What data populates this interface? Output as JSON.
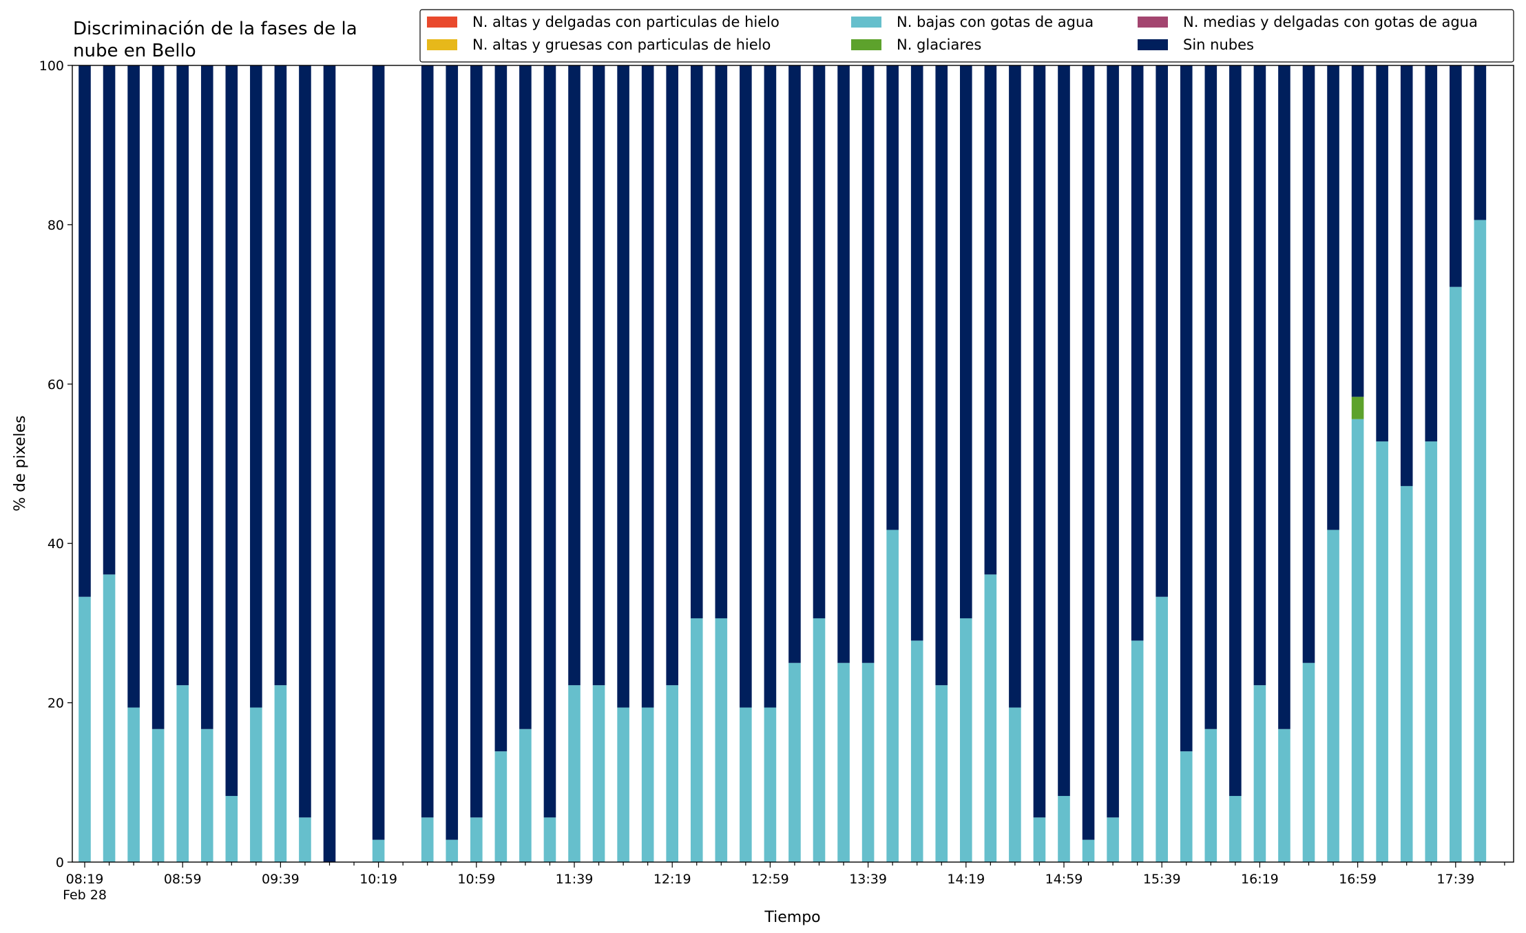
{
  "chart_data": {
    "type": "bar",
    "stacked": true,
    "title_line1": "Discriminación de la fases de la",
    "title_line2": "nube en Bello",
    "xlabel": "Tiempo",
    "ylabel": "% de pixeles",
    "ylim": [
      0,
      100
    ],
    "yticks": [
      "0",
      "20",
      "40",
      "60",
      "80",
      "100"
    ],
    "date_label": "Feb 28",
    "x_tick_labels": [
      "08:19",
      "08:59",
      "09:39",
      "10:19",
      "10:59",
      "11:39",
      "12:19",
      "12:59",
      "13:39",
      "14:19",
      "14:59",
      "15:39",
      "16:19",
      "16:59",
      "17:39"
    ],
    "x_start": "08:19",
    "x_interval_minutes": 10,
    "legend_position": "top-right",
    "x": [
      "08:19",
      "08:29",
      "08:39",
      "08:49",
      "08:59",
      "09:09",
      "09:19",
      "09:29",
      "09:39",
      "09:49",
      "09:59",
      "10:09",
      "10:19",
      "10:29",
      "10:39",
      "10:49",
      "10:59",
      "11:09",
      "11:19",
      "11:29",
      "11:39",
      "11:49",
      "11:59",
      "12:09",
      "12:19",
      "12:29",
      "12:39",
      "12:49",
      "12:59",
      "13:09",
      "13:19",
      "13:29",
      "13:39",
      "13:49",
      "13:59",
      "14:09",
      "14:19",
      "14:29",
      "14:39",
      "14:49",
      "14:59",
      "15:09",
      "15:19",
      "15:29",
      "15:39",
      "15:49",
      "15:59",
      "16:09",
      "16:19",
      "16:29",
      "16:39",
      "16:49",
      "16:59",
      "17:09",
      "17:19",
      "17:29",
      "17:39",
      "17:49",
      "17:59"
    ],
    "series": [
      {
        "name": "N. altas y delgadas con particulas de hielo",
        "color": "#e9492d",
        "values": [
          0,
          0,
          0,
          0,
          0,
          0,
          0,
          0,
          0,
          0,
          0,
          null,
          0,
          null,
          0,
          0,
          0,
          0,
          0,
          0,
          0,
          0,
          0,
          0,
          0,
          0,
          0,
          0,
          0,
          0,
          0,
          0,
          0,
          0,
          0,
          0,
          0,
          0,
          0,
          0,
          0,
          0,
          0,
          0,
          0,
          0,
          0,
          0,
          0,
          0,
          0,
          0,
          0,
          0,
          0,
          0,
          0,
          0,
          0
        ]
      },
      {
        "name": "N. altas y gruesas con particulas de hielo",
        "color": "#e7b81a",
        "values": [
          0,
          0,
          0,
          0,
          0,
          0,
          0,
          0,
          0,
          0,
          0,
          null,
          0,
          null,
          0,
          0,
          0,
          0,
          0,
          0,
          0,
          0,
          0,
          0,
          0,
          0,
          0,
          0,
          0,
          0,
          0,
          0,
          0,
          0,
          0,
          0,
          0,
          0,
          0,
          0,
          0,
          0,
          0,
          0,
          0,
          0,
          0,
          0,
          0,
          0,
          0,
          0,
          0,
          0,
          0,
          0,
          0,
          0,
          0
        ]
      },
      {
        "name": "N. bajas con gotas de agua",
        "color": "#66bfcc",
        "values": [
          33.3,
          36.1,
          19.4,
          16.7,
          22.2,
          16.7,
          8.3,
          19.4,
          22.2,
          5.6,
          0,
          null,
          2.8,
          null,
          5.6,
          2.8,
          5.6,
          13.9,
          16.7,
          5.6,
          22.2,
          22.2,
          19.4,
          19.4,
          22.2,
          30.6,
          30.6,
          19.4,
          19.4,
          25,
          30.6,
          25,
          25,
          41.7,
          27.8,
          22.2,
          30.6,
          36.1,
          19.4,
          5.6,
          8.3,
          2.8,
          5.6,
          27.8,
          33.3,
          13.9,
          16.7,
          8.3,
          22.2,
          16.7,
          25,
          41.7,
          55.6,
          52.8,
          47.2,
          52.8,
          72.2,
          80.6,
          0
        ]
      },
      {
        "name": "N. glaciares",
        "color": "#5da22c",
        "values": [
          0,
          0,
          0,
          0,
          0,
          0,
          0,
          0,
          0,
          0,
          0,
          null,
          0,
          null,
          0,
          0,
          0,
          0,
          0,
          0,
          0,
          0,
          0,
          0,
          0,
          0,
          0,
          0,
          0,
          0,
          0,
          0,
          0,
          0,
          0,
          0,
          0,
          0,
          0,
          0,
          0,
          0,
          0,
          0,
          0,
          0,
          0,
          0,
          0,
          0,
          0,
          0,
          2.8,
          0,
          0,
          0,
          0,
          0,
          0
        ]
      },
      {
        "name": "N. medias y delgadas con gotas de agua",
        "color": "#a3456f",
        "values": [
          0,
          0,
          0,
          0,
          0,
          0,
          0,
          0,
          0,
          0,
          0,
          null,
          0,
          null,
          0,
          0,
          0,
          0,
          0,
          0,
          0,
          0,
          0,
          0,
          0,
          0,
          0,
          0,
          0,
          0,
          0,
          0,
          0,
          0,
          0,
          0,
          0,
          0,
          0,
          0,
          0,
          0,
          0,
          0,
          0,
          0,
          0,
          0,
          0,
          0,
          0,
          0,
          0,
          0,
          0,
          0,
          0,
          0,
          0
        ]
      },
      {
        "name": "Sin nubes",
        "color": "#001f5c",
        "values": [
          66.7,
          63.9,
          80.6,
          83.3,
          77.8,
          83.3,
          91.7,
          80.6,
          77.8,
          94.4,
          100,
          null,
          97.2,
          null,
          94.4,
          97.2,
          94.4,
          86.1,
          83.3,
          94.4,
          77.8,
          77.8,
          80.6,
          80.6,
          77.8,
          69.4,
          69.4,
          80.6,
          80.6,
          75,
          69.4,
          75,
          75,
          58.3,
          72.2,
          77.8,
          69.4,
          63.9,
          80.6,
          94.4,
          91.7,
          97.2,
          94.4,
          72.2,
          66.7,
          86.1,
          83.3,
          91.7,
          77.8,
          83.3,
          75,
          58.3,
          41.6,
          47.2,
          52.8,
          47.2,
          27.8,
          19.4,
          0
        ]
      }
    ],
    "legend_order": [
      0,
      1,
      2,
      3,
      4,
      5
    ]
  }
}
